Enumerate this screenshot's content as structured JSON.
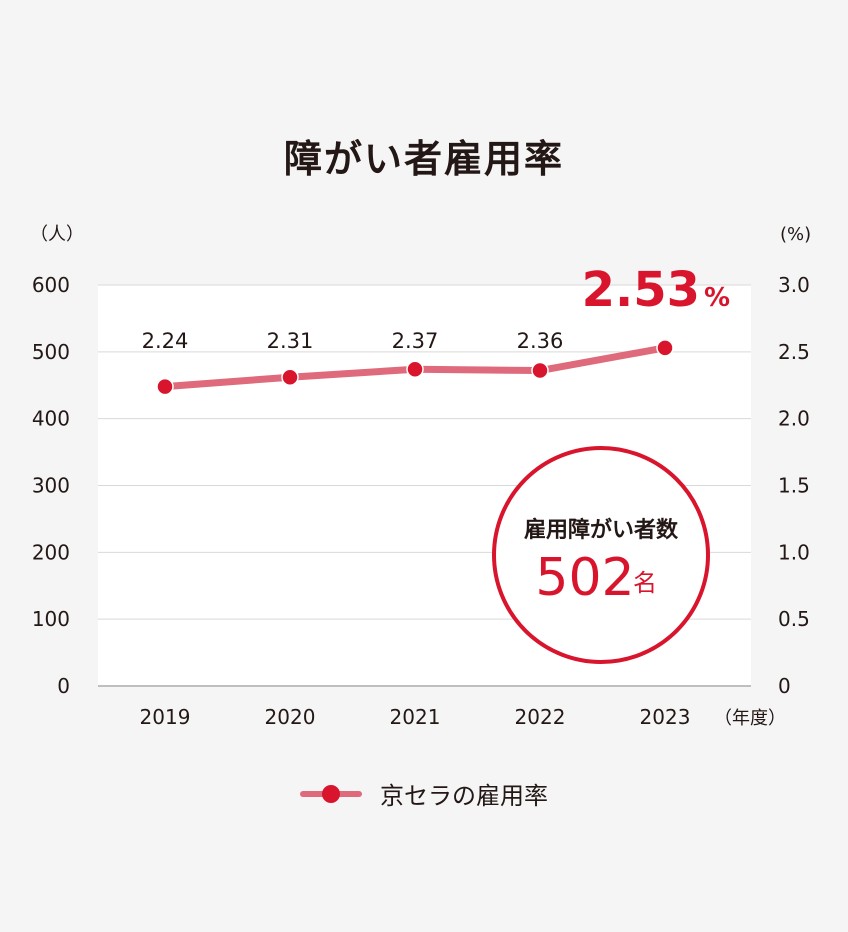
{
  "title": "障がい者雇用率",
  "legend": {
    "label": "京セラの雇用率"
  },
  "badge": {
    "heading": "雇用障がい者数",
    "value": "502",
    "unit": "名"
  },
  "highlight": {
    "value": "2.53",
    "unit": "%"
  },
  "colors": {
    "accent": "#d8152c",
    "line": "#de6a7b",
    "text": "#231815",
    "grid": "#d9d9d9",
    "plot_bg": "#ffffff"
  },
  "chart_data": {
    "type": "line",
    "categories": [
      "2019",
      "2020",
      "2021",
      "2022",
      "2023"
    ],
    "series": [
      {
        "name": "京セラの雇用率",
        "values": [
          2.24,
          2.31,
          2.37,
          2.36,
          2.53
        ]
      }
    ],
    "data_labels": [
      "2.24",
      "2.31",
      "2.37",
      "2.36",
      "2.53"
    ],
    "y_left": {
      "unit": "（人）",
      "ticks": [
        "0",
        "100",
        "200",
        "300",
        "400",
        "500",
        "600"
      ],
      "lim": [
        0,
        600
      ]
    },
    "y_right": {
      "unit": "(%)",
      "ticks": [
        "0",
        "0.5",
        "1.0",
        "1.5",
        "2.0",
        "2.5",
        "3.0"
      ],
      "lim": [
        0,
        3.0
      ]
    },
    "x_unit": "（年度）",
    "grid": true
  }
}
